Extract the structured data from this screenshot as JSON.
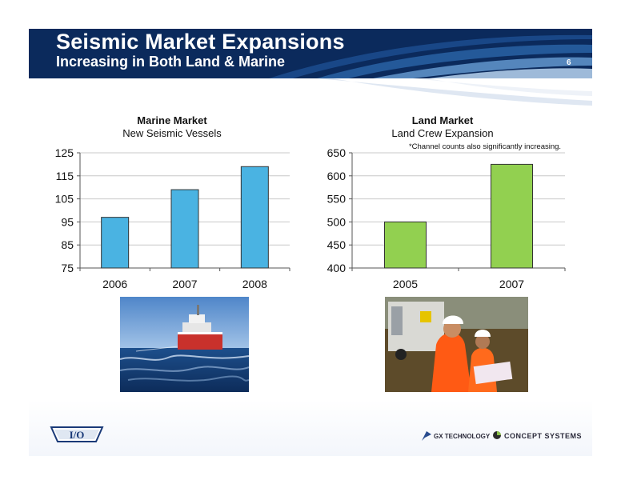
{
  "header": {
    "title": "Seismic Market Expansions",
    "subtitle": "Increasing in Both Land & Marine",
    "page_number": "6"
  },
  "colors": {
    "header_bg": "#0b2a5c",
    "marine_bar": "#4ab3e2",
    "land_bar": "#92d050"
  },
  "chart_data": [
    {
      "type": "bar",
      "title": "Marine Market",
      "subtitle": "New Seismic Vessels",
      "categories": [
        "2006",
        "2007",
        "2008"
      ],
      "values": [
        97,
        109,
        119
      ],
      "ylim": [
        75,
        125
      ],
      "yticks": [
        "75",
        "85",
        "95",
        "105",
        "115",
        "125"
      ],
      "grid": true,
      "legend": "none"
    },
    {
      "type": "bar",
      "title": "Land Market",
      "subtitle": "Land Crew Expansion",
      "note": "*Channel counts also significantly increasing.",
      "categories": [
        "2005",
        "2007"
      ],
      "values": [
        500,
        625
      ],
      "ylim": [
        400,
        650
      ],
      "yticks": [
        "400",
        "450",
        "500",
        "550",
        "600",
        "650"
      ],
      "grid": true,
      "legend": "none"
    }
  ],
  "logos": {
    "io": "I/O",
    "gx": "GX TECHNOLOGY",
    "concept": "CONCEPT SYSTEMS"
  },
  "icons": {
    "gx": "gx-technology-logo-icon",
    "concept": "concept-systems-logo-icon",
    "io": "io-logo-icon"
  }
}
